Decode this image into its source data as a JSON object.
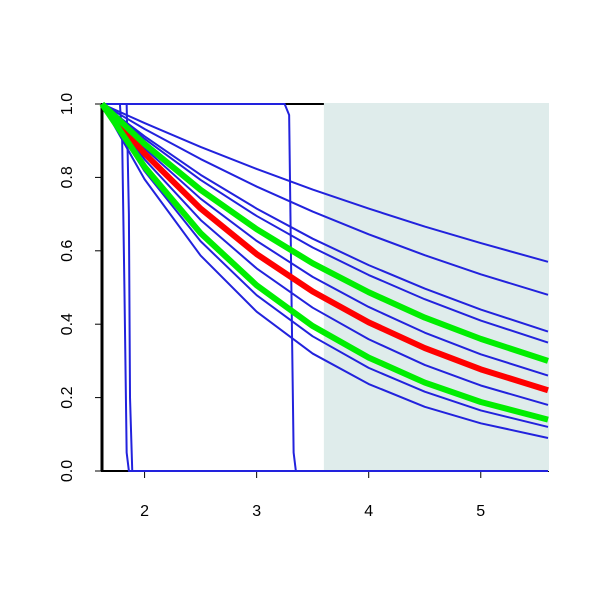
{
  "chart_data": {
    "type": "line",
    "xlim": [
      1.62,
      5.6
    ],
    "ylim": [
      0,
      1
    ],
    "xticks": [
      2,
      3,
      4,
      5
    ],
    "yticks": [
      {
        "value": 0,
        "label": "0.0"
      },
      0.2,
      0.4,
      0.6,
      0.8,
      {
        "value": 1,
        "label": "1.0"
      }
    ],
    "shade_from": 3.6,
    "shade_color": "#dfeceb",
    "series": [
      {
        "color": "#2222dd",
        "x": [
          1.62,
          1.78,
          1.8,
          1.82,
          1.84,
          1.86,
          5.6
        ],
        "values": [
          1,
          1,
          0.9,
          0.5,
          0.05,
          0,
          0
        ]
      },
      {
        "color": "#2222dd",
        "x": [
          1.62,
          1.84,
          1.86,
          1.87,
          1.89,
          5.6
        ],
        "values": [
          1,
          1,
          0.7,
          0.2,
          0,
          0
        ]
      },
      {
        "color": "#2222dd",
        "x": [
          1.62,
          3.25,
          3.29,
          3.31,
          3.33,
          3.35,
          5.6
        ],
        "values": [
          1,
          1,
          0.97,
          0.5,
          0.05,
          0,
          0
        ]
      },
      {
        "color": "#2222dd",
        "x": [
          1.62,
          2,
          2.5,
          3,
          3.5,
          4,
          4.5,
          5,
          5.6
        ],
        "values": [
          1,
          0.948,
          0.883,
          0.823,
          0.767,
          0.715,
          0.666,
          0.621,
          0.57
        ]
      },
      {
        "color": "#2222dd",
        "x": [
          1.62,
          2,
          2.5,
          3,
          3.5,
          4,
          4.5,
          5,
          5.6
        ],
        "values": [
          1,
          0.932,
          0.85,
          0.775,
          0.707,
          0.645,
          0.588,
          0.536,
          0.48
        ]
      },
      {
        "color": "#2222dd",
        "x": [
          1.62,
          2,
          2.5,
          3,
          3.5,
          4,
          4.5,
          5,
          5.6
        ],
        "values": [
          1,
          0.912,
          0.807,
          0.715,
          0.633,
          0.561,
          0.497,
          0.44,
          0.38
        ]
      },
      {
        "color": "#2222dd",
        "x": [
          1.62,
          2,
          2.5,
          3,
          3.5,
          4,
          4.5,
          5,
          5.6
        ],
        "values": [
          1,
          0.905,
          0.793,
          0.695,
          0.609,
          0.534,
          0.468,
          0.41,
          0.35
        ]
      },
      {
        "color": "#2222dd",
        "x": [
          1.62,
          2,
          2.5,
          3,
          3.5,
          4,
          4.5,
          5,
          5.6
        ],
        "values": [
          1,
          0.879,
          0.742,
          0.627,
          0.529,
          0.447,
          0.377,
          0.318,
          0.26
        ]
      },
      {
        "color": "#2222dd",
        "x": [
          1.62,
          2,
          2.5,
          3,
          3.5,
          4,
          4.5,
          5,
          5.6
        ],
        "values": [
          1,
          0.849,
          0.684,
          0.552,
          0.445,
          0.359,
          0.289,
          0.233,
          0.18
        ]
      },
      {
        "color": "#2222dd",
        "x": [
          1.62,
          2,
          2.5,
          3,
          3.5,
          4,
          4.5,
          5,
          5.6
        ],
        "values": [
          1,
          0.817,
          0.626,
          0.479,
          0.367,
          0.281,
          0.216,
          0.165,
          0.12
        ]
      },
      {
        "color": "#2222dd",
        "x": [
          1.62,
          2,
          2.5,
          3,
          3.5,
          4,
          4.5,
          5,
          5.6
        ],
        "values": [
          1,
          0.795,
          0.587,
          0.434,
          0.32,
          0.237,
          0.175,
          0.13,
          0.09
        ]
      },
      {
        "color": "#ff0000",
        "x": [
          1.62,
          2,
          2.5,
          3,
          3.5,
          4,
          4.5,
          5,
          5.6
        ],
        "values": [
          1,
          0.865,
          0.715,
          0.591,
          0.489,
          0.405,
          0.335,
          0.277,
          0.22
        ]
      },
      {
        "color": "#00ee00",
        "x": [
          1.62,
          2,
          2.5,
          3,
          3.5,
          4,
          4.5,
          5,
          5.6
        ],
        "values": [
          1,
          0.891,
          0.766,
          0.659,
          0.566,
          0.487,
          0.418,
          0.36,
          0.3
        ]
      },
      {
        "color": "#00ee00",
        "x": [
          1.62,
          2,
          2.5,
          3,
          3.5,
          4,
          4.5,
          5,
          5.6
        ],
        "values": [
          1,
          0.829,
          0.648,
          0.506,
          0.395,
          0.309,
          0.241,
          0.188,
          0.14
        ]
      }
    ]
  }
}
